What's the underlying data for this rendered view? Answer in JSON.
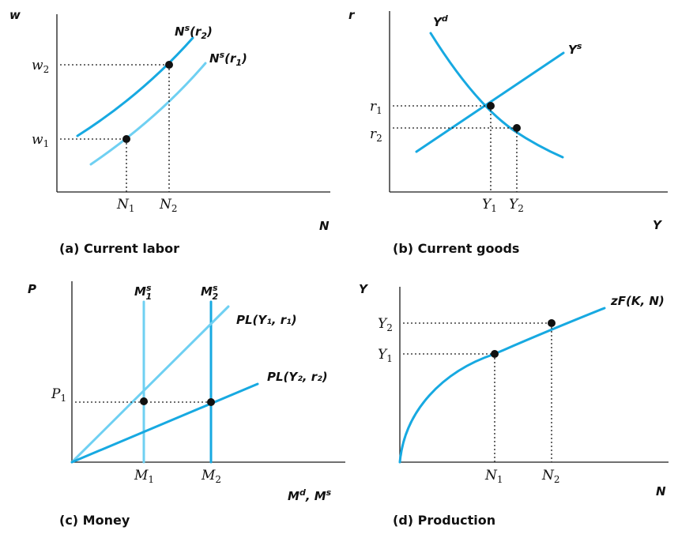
{
  "colors": {
    "curve_dark": "#17a9e1",
    "curve_light": "#6fd0f2",
    "axis": "#1a1a1a"
  },
  "panel_a": {
    "caption": "(a) Current labor",
    "y_axis": "w",
    "x_axis": "N",
    "curve_r2": {
      "base": "N",
      "sup": "s",
      "arg": "(r",
      "sub": "2",
      "close": ")"
    },
    "curve_r1": {
      "base": "N",
      "sup": "s",
      "arg": "(r",
      "sub": "1",
      "close": ")"
    },
    "y_ticks": [
      {
        "base": "w",
        "sub": "2"
      },
      {
        "base": "w",
        "sub": "1"
      }
    ],
    "x_ticks": [
      {
        "base": "N",
        "sub": "1"
      },
      {
        "base": "N",
        "sub": "2"
      }
    ]
  },
  "panel_b": {
    "caption": "(b) Current goods",
    "y_axis": "r",
    "x_axis": "Y",
    "demand": {
      "base": "Y",
      "sup": "d"
    },
    "supply": {
      "base": "Y",
      "sup": "s"
    },
    "y_ticks": [
      {
        "base": "r",
        "sub": "1"
      },
      {
        "base": "r",
        "sub": "2"
      }
    ],
    "x_ticks": [
      {
        "base": "Y",
        "sub": "1"
      },
      {
        "base": "Y",
        "sub": "2"
      }
    ]
  },
  "panel_c": {
    "caption": "(c) Money",
    "y_axis": "P",
    "x_axis": {
      "a": "M",
      "a_sup": "d",
      "sep": ", ",
      "b": "M",
      "b_sup": "s"
    },
    "ms1": {
      "base": "M",
      "sup": "s",
      "sub": "1"
    },
    "ms2": {
      "base": "M",
      "sup": "s",
      "sub": "2"
    },
    "pl1": "PL(Y₁, r₁)",
    "pl2": "PL(Y₂, r₂)",
    "y_ticks": [
      {
        "base": "P",
        "sub": "1"
      }
    ],
    "x_ticks": [
      {
        "base": "M",
        "sub": "1"
      },
      {
        "base": "M",
        "sub": "2"
      }
    ]
  },
  "panel_d": {
    "caption": "(d) Production",
    "y_axis": "Y",
    "x_axis": "N",
    "curve": "zF(K, N)",
    "y_ticks": [
      {
        "base": "Y",
        "sub": "2"
      },
      {
        "base": "Y",
        "sub": "1"
      }
    ],
    "x_ticks": [
      {
        "base": "N",
        "sub": "1"
      },
      {
        "base": "N",
        "sub": "2"
      }
    ]
  }
}
